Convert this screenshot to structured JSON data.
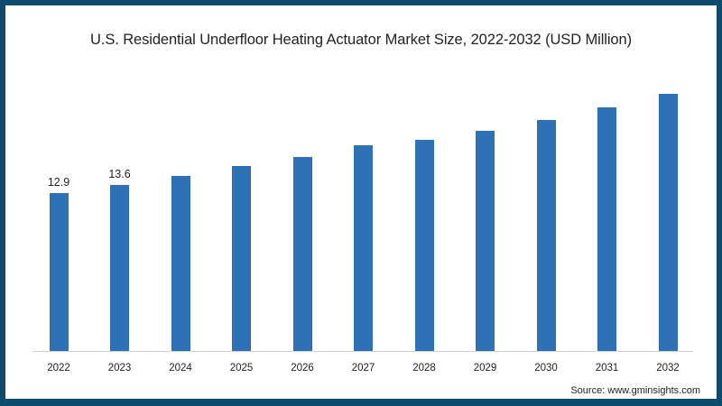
{
  "title": "U.S. Residential Underfloor Heating Actuator Market Size, 2022-2032 (USD Million)",
  "source": "Source: www.gminsights.com",
  "colors": {
    "bar": "#2e72b5",
    "frame": "#0d4a6b",
    "background": "#ffffff"
  },
  "chart_data": {
    "type": "bar",
    "title": "U.S. Residential Underfloor Heating Actuator Market Size, 2022-2032 (USD Million)",
    "xlabel": "",
    "ylabel": "USD Million",
    "categories": [
      "2022",
      "2023",
      "2024",
      "2025",
      "2026",
      "2027",
      "2028",
      "2029",
      "2030",
      "2031",
      "2032"
    ],
    "values": [
      12.9,
      13.6,
      14.3,
      15.1,
      15.9,
      16.8,
      17.3,
      18.0,
      18.9,
      19.9,
      21.0
    ],
    "data_labels": {
      "2022": "12.9",
      "2023": "13.6"
    },
    "ylim": [
      0,
      22
    ],
    "grid": false,
    "legend": "none",
    "y_axis_visible": false
  }
}
